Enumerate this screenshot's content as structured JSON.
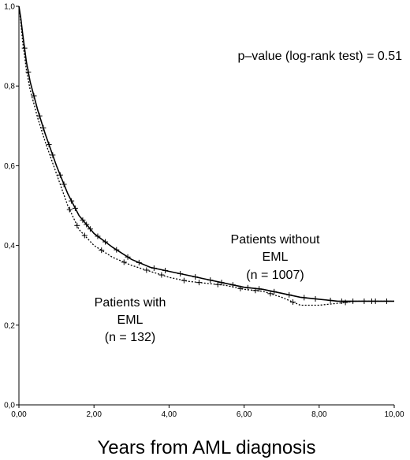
{
  "chart_data": {
    "type": "line",
    "title": "",
    "xlabel": "Years from AML diagnosis",
    "ylabel": "",
    "xlim": [
      0,
      10
    ],
    "ylim": [
      0,
      1
    ],
    "x_ticks": [
      "0,00",
      "2,00",
      "4,00",
      "6,00",
      "8,00",
      "10,00"
    ],
    "y_ticks": [
      "0,0",
      "0,2",
      "0,4",
      "0,6",
      "0,8",
      "1,0"
    ],
    "grid": false,
    "annotations": {
      "p_value": "p–value (log-rank test) = 0.51",
      "group_without": [
        "Patients without",
        "EML",
        "(n = 1007)"
      ],
      "group_with": [
        "Patients with",
        "EML",
        "(n = 132)"
      ]
    },
    "series": [
      {
        "style": "solid",
        "color": "#000000",
        "x": [
          0,
          0.05,
          0.1,
          0.2,
          0.3,
          0.5,
          0.7,
          1.0,
          1.3,
          1.6,
          2.0,
          2.5,
          3.0,
          3.5,
          4.0,
          4.5,
          5.0,
          5.5,
          6.0,
          6.5,
          7.0,
          7.5,
          8.0,
          8.5,
          9.0,
          9.5,
          10.0
        ],
        "y": [
          1.0,
          0.97,
          0.93,
          0.86,
          0.81,
          0.74,
          0.68,
          0.6,
          0.53,
          0.475,
          0.43,
          0.395,
          0.365,
          0.345,
          0.335,
          0.325,
          0.315,
          0.305,
          0.295,
          0.29,
          0.28,
          0.27,
          0.265,
          0.26,
          0.26,
          0.26,
          0.26
        ]
      },
      {
        "style": "dotted",
        "color": "#000000",
        "x": [
          0,
          0.05,
          0.1,
          0.2,
          0.3,
          0.5,
          0.7,
          1.0,
          1.3,
          1.6,
          2.0,
          2.5,
          3.0,
          3.5,
          4.0,
          4.5,
          5.0,
          5.5,
          6.0,
          6.5,
          7.0,
          7.5,
          8.0,
          8.5,
          9.0,
          9.5,
          10.0
        ],
        "y": [
          1.0,
          0.96,
          0.91,
          0.84,
          0.79,
          0.72,
          0.66,
          0.58,
          0.5,
          0.44,
          0.4,
          0.37,
          0.35,
          0.335,
          0.32,
          0.31,
          0.305,
          0.3,
          0.29,
          0.285,
          0.27,
          0.25,
          0.25,
          0.255,
          0.26,
          0.26,
          0.26
        ]
      }
    ],
    "censor_marks": {
      "solid": [
        0.15,
        0.25,
        0.4,
        0.55,
        0.65,
        0.8,
        0.9,
        1.1,
        1.2,
        1.4,
        1.5,
        1.7,
        1.8,
        1.9,
        2.1,
        2.3,
        2.6,
        2.9,
        3.2,
        3.6,
        3.9,
        4.3,
        4.7,
        5.1,
        5.4,
        5.7,
        6.1,
        6.4,
        6.8,
        7.2,
        7.6,
        7.9,
        8.3,
        8.6,
        8.9,
        9.2,
        9.5,
        9.8
      ],
      "dotted": [
        1.35,
        1.55,
        1.75,
        2.2,
        2.8,
        3.4,
        3.8,
        4.4,
        4.8,
        5.3,
        5.9,
        6.3,
        6.7,
        7.3,
        8.7,
        9.4
      ]
    }
  }
}
